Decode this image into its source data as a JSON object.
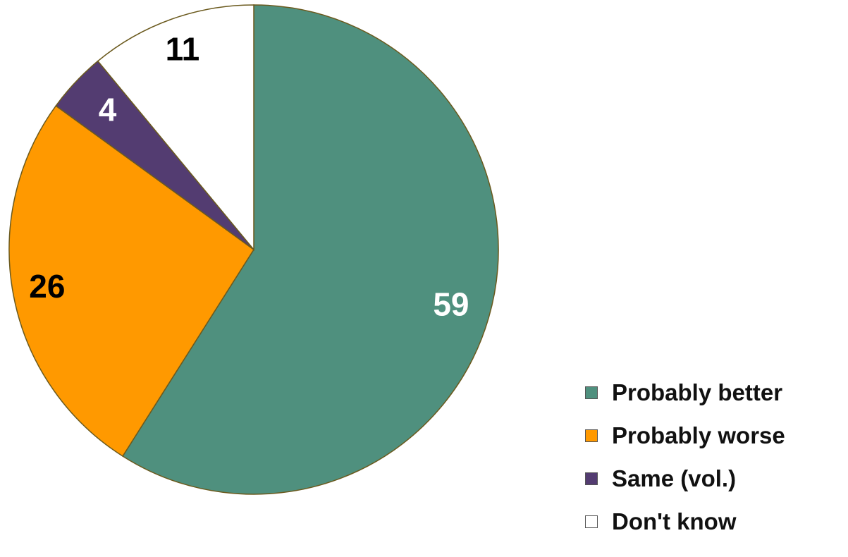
{
  "chart_data": {
    "type": "pie",
    "title": "",
    "start_angle_deg": 0,
    "direction": "clockwise",
    "legend_position": "bottom-right",
    "slices": [
      {
        "name": "Probably better",
        "value": 59,
        "color": "#4f907e",
        "label_color": "#ffffff"
      },
      {
        "name": "Probably worse",
        "value": 26,
        "color": "#ff9900",
        "label_color": "#000000"
      },
      {
        "name": "Same (vol.)",
        "value": 4,
        "color": "#533c71",
        "label_color": "#ffffff"
      },
      {
        "name": "Don't know",
        "value": 11,
        "color": "#ffffff",
        "label_color": "#000000"
      }
    ]
  }
}
